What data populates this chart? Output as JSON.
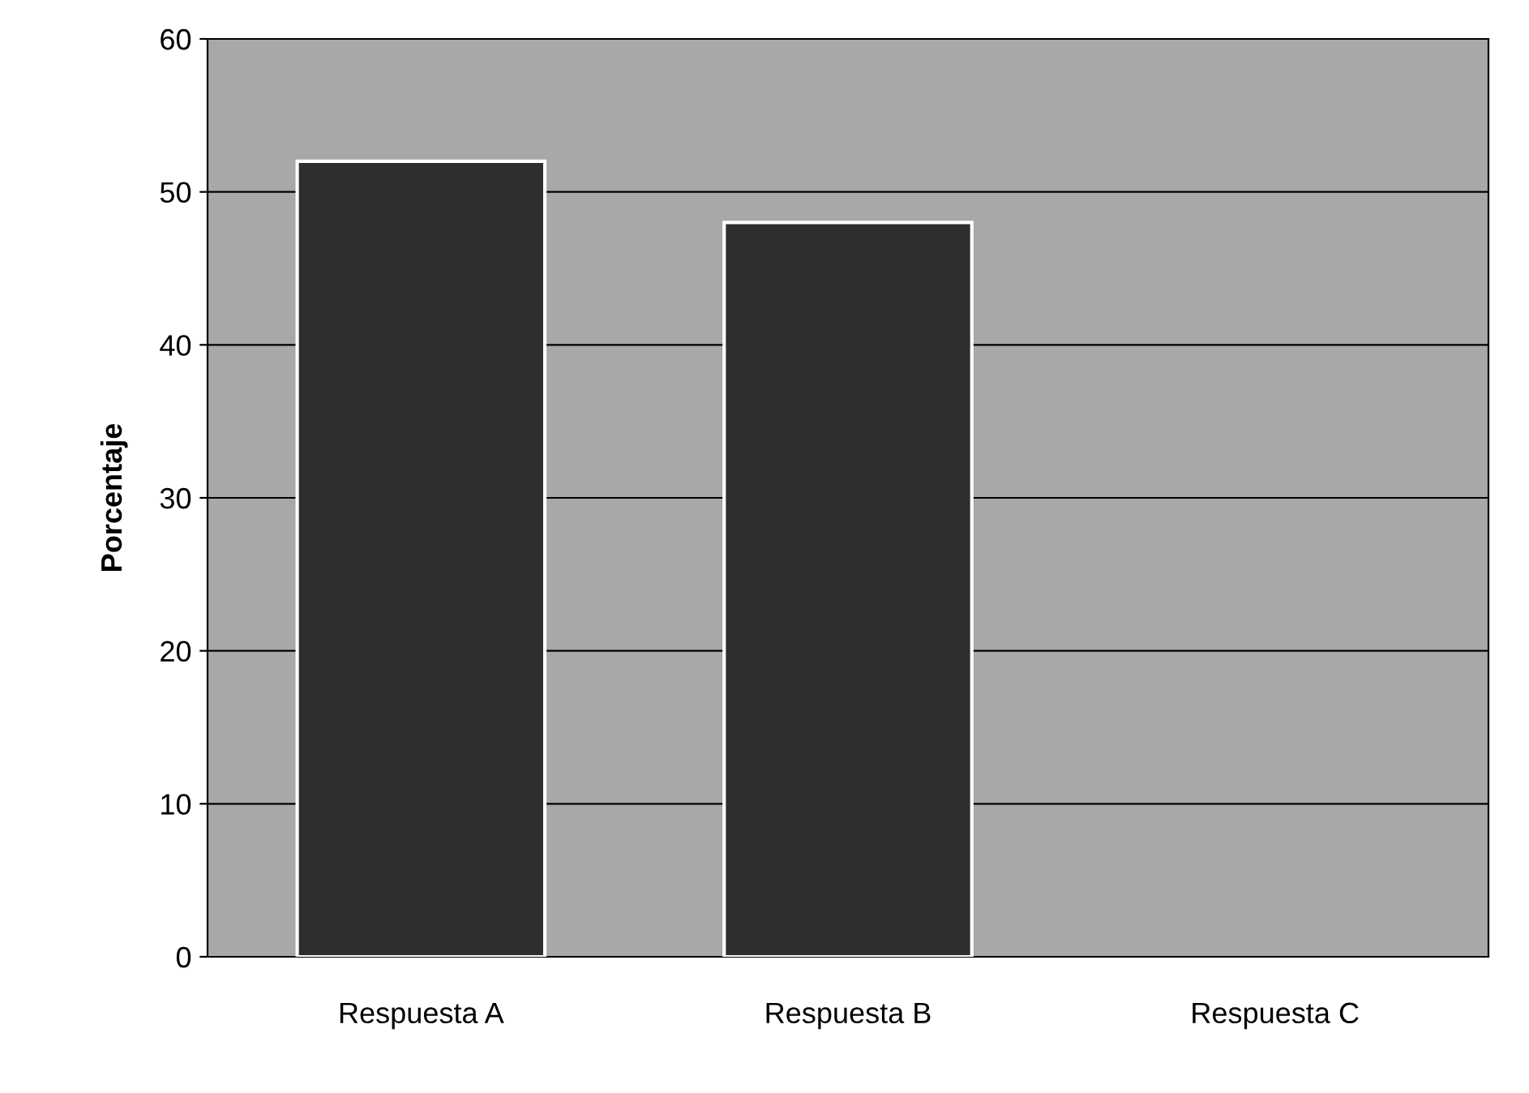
{
  "chart_data": {
    "type": "bar",
    "ylabel": "Porcentaje",
    "categories": [
      "Respuesta A",
      "Respuesta B",
      "Respuesta C"
    ],
    "values": [
      52,
      48,
      0
    ],
    "color": "#2e2e2e",
    "ylim": [
      0,
      60
    ],
    "yticks": [
      0,
      10,
      20,
      30,
      40,
      50,
      60
    ],
    "grid": "y"
  }
}
